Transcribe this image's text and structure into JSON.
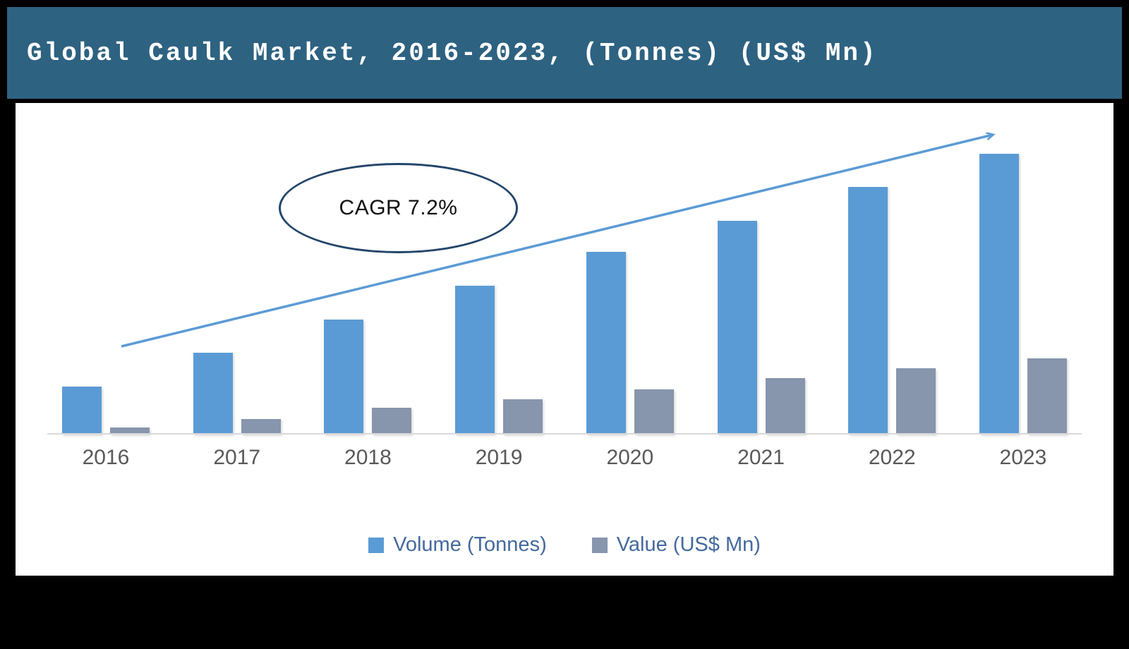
{
  "header": {
    "title": "Global Caulk Market, 2016-2023, (Tonnes) (US$ Mn)"
  },
  "annotation": {
    "cagr_label": "CAGR 7.2%"
  },
  "legend": [
    {
      "label": "Volume (Tonnes)",
      "color": "#5b9bd5"
    },
    {
      "label": "Value (US$ Mn)",
      "color": "#8795ad"
    }
  ],
  "chart_data": {
    "type": "bar",
    "title": "Global Caulk Market, 2016-2023, (Tonnes) (US$ Mn)",
    "categories": [
      "2016",
      "2017",
      "2018",
      "2019",
      "2020",
      "2021",
      "2022",
      "2023"
    ],
    "series": [
      {
        "name": "Volume (Tonnes)",
        "color": "#5b9bd5",
        "values": [
          17,
          29,
          41,
          53,
          65,
          76,
          88,
          100
        ]
      },
      {
        "name": "Value (US$ Mn)",
        "color": "#8795ad",
        "values": [
          2.5,
          5.5,
          9.5,
          12.5,
          16,
          20,
          23.5,
          27
        ]
      }
    ],
    "value_scale": "relative index estimated from bar heights; no y-axis labels shown (2023 volume = 100)",
    "ylim": [
      0,
      118
    ],
    "xlabel": "",
    "ylabel": "",
    "grid": false,
    "legend_position": "bottom",
    "annotations": [
      "CAGR 7.2%",
      "upward trend arrow from 2016 to 2023"
    ]
  }
}
